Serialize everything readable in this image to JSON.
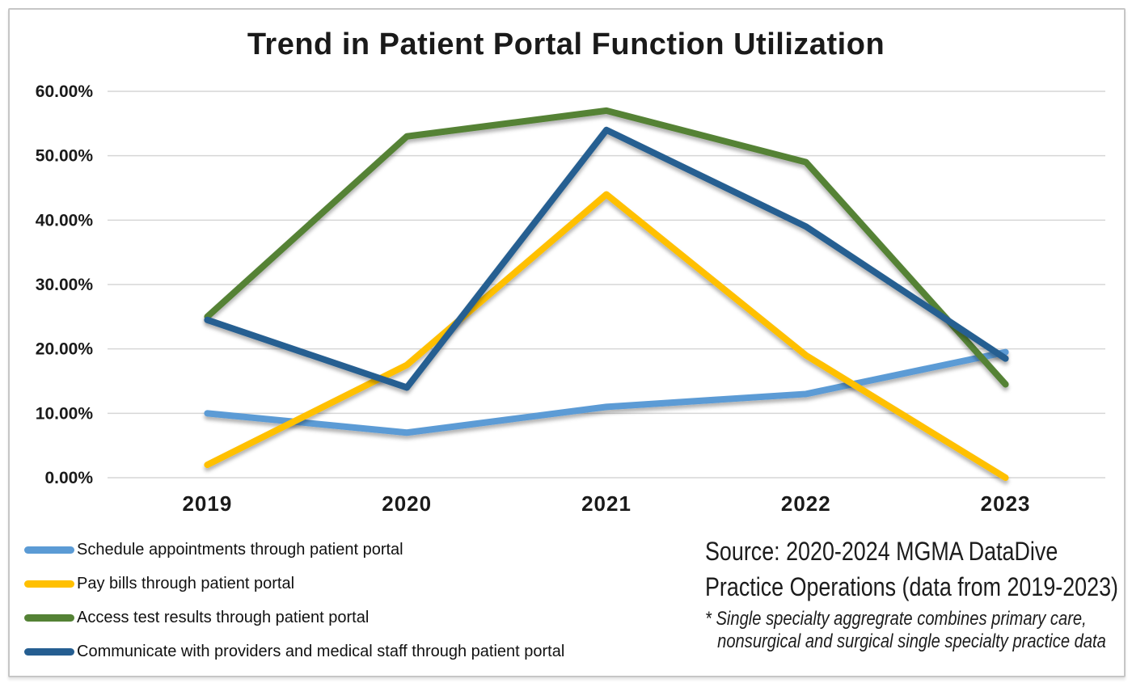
{
  "frame": {
    "border_color": "#c6c6c6"
  },
  "chart_data": {
    "type": "line",
    "title": "Trend in Patient Portal Function Utilization",
    "categories": [
      "2019",
      "2020",
      "2021",
      "2022",
      "2023"
    ],
    "series": [
      {
        "name": "Schedule appointments through patient portal",
        "color": "#5B9BD5",
        "values": [
          10,
          7,
          11,
          13,
          19.5
        ]
      },
      {
        "name": "Pay bills through patient portal",
        "color": "#FFC000",
        "values": [
          2,
          17.5,
          44,
          19,
          0
        ]
      },
      {
        "name": "Access test results through patient portal",
        "color": "#548235",
        "values": [
          25,
          53,
          57,
          49,
          14.5
        ]
      },
      {
        "name": "Communicate with providers and medical staff through patient portal",
        "color": "#255E91",
        "values": [
          24.5,
          14,
          54,
          39,
          18.5
        ]
      }
    ],
    "ylim": [
      0,
      60
    ],
    "yticks": [
      {
        "label": "60.00%",
        "value": 60
      },
      {
        "label": "50.00%",
        "value": 50
      },
      {
        "label": "40.00%",
        "value": 40
      },
      {
        "label": "30.00%",
        "value": 30
      },
      {
        "label": "20.00%",
        "value": 20
      },
      {
        "label": "10.00%",
        "value": 10
      },
      {
        "label": "0.00%",
        "value": 0
      }
    ],
    "grid": true,
    "legend_position": "bottom-left",
    "line_width": 8
  },
  "source": {
    "line1": "Source: 2020-2024 MGMA DataDive",
    "line2": "Practice Operations (data from 2019-2023)",
    "note_line1": "* Single specialty aggregrate combines primary care,",
    "note_line2": "nonsurgical and surgical single specialty practice data"
  }
}
